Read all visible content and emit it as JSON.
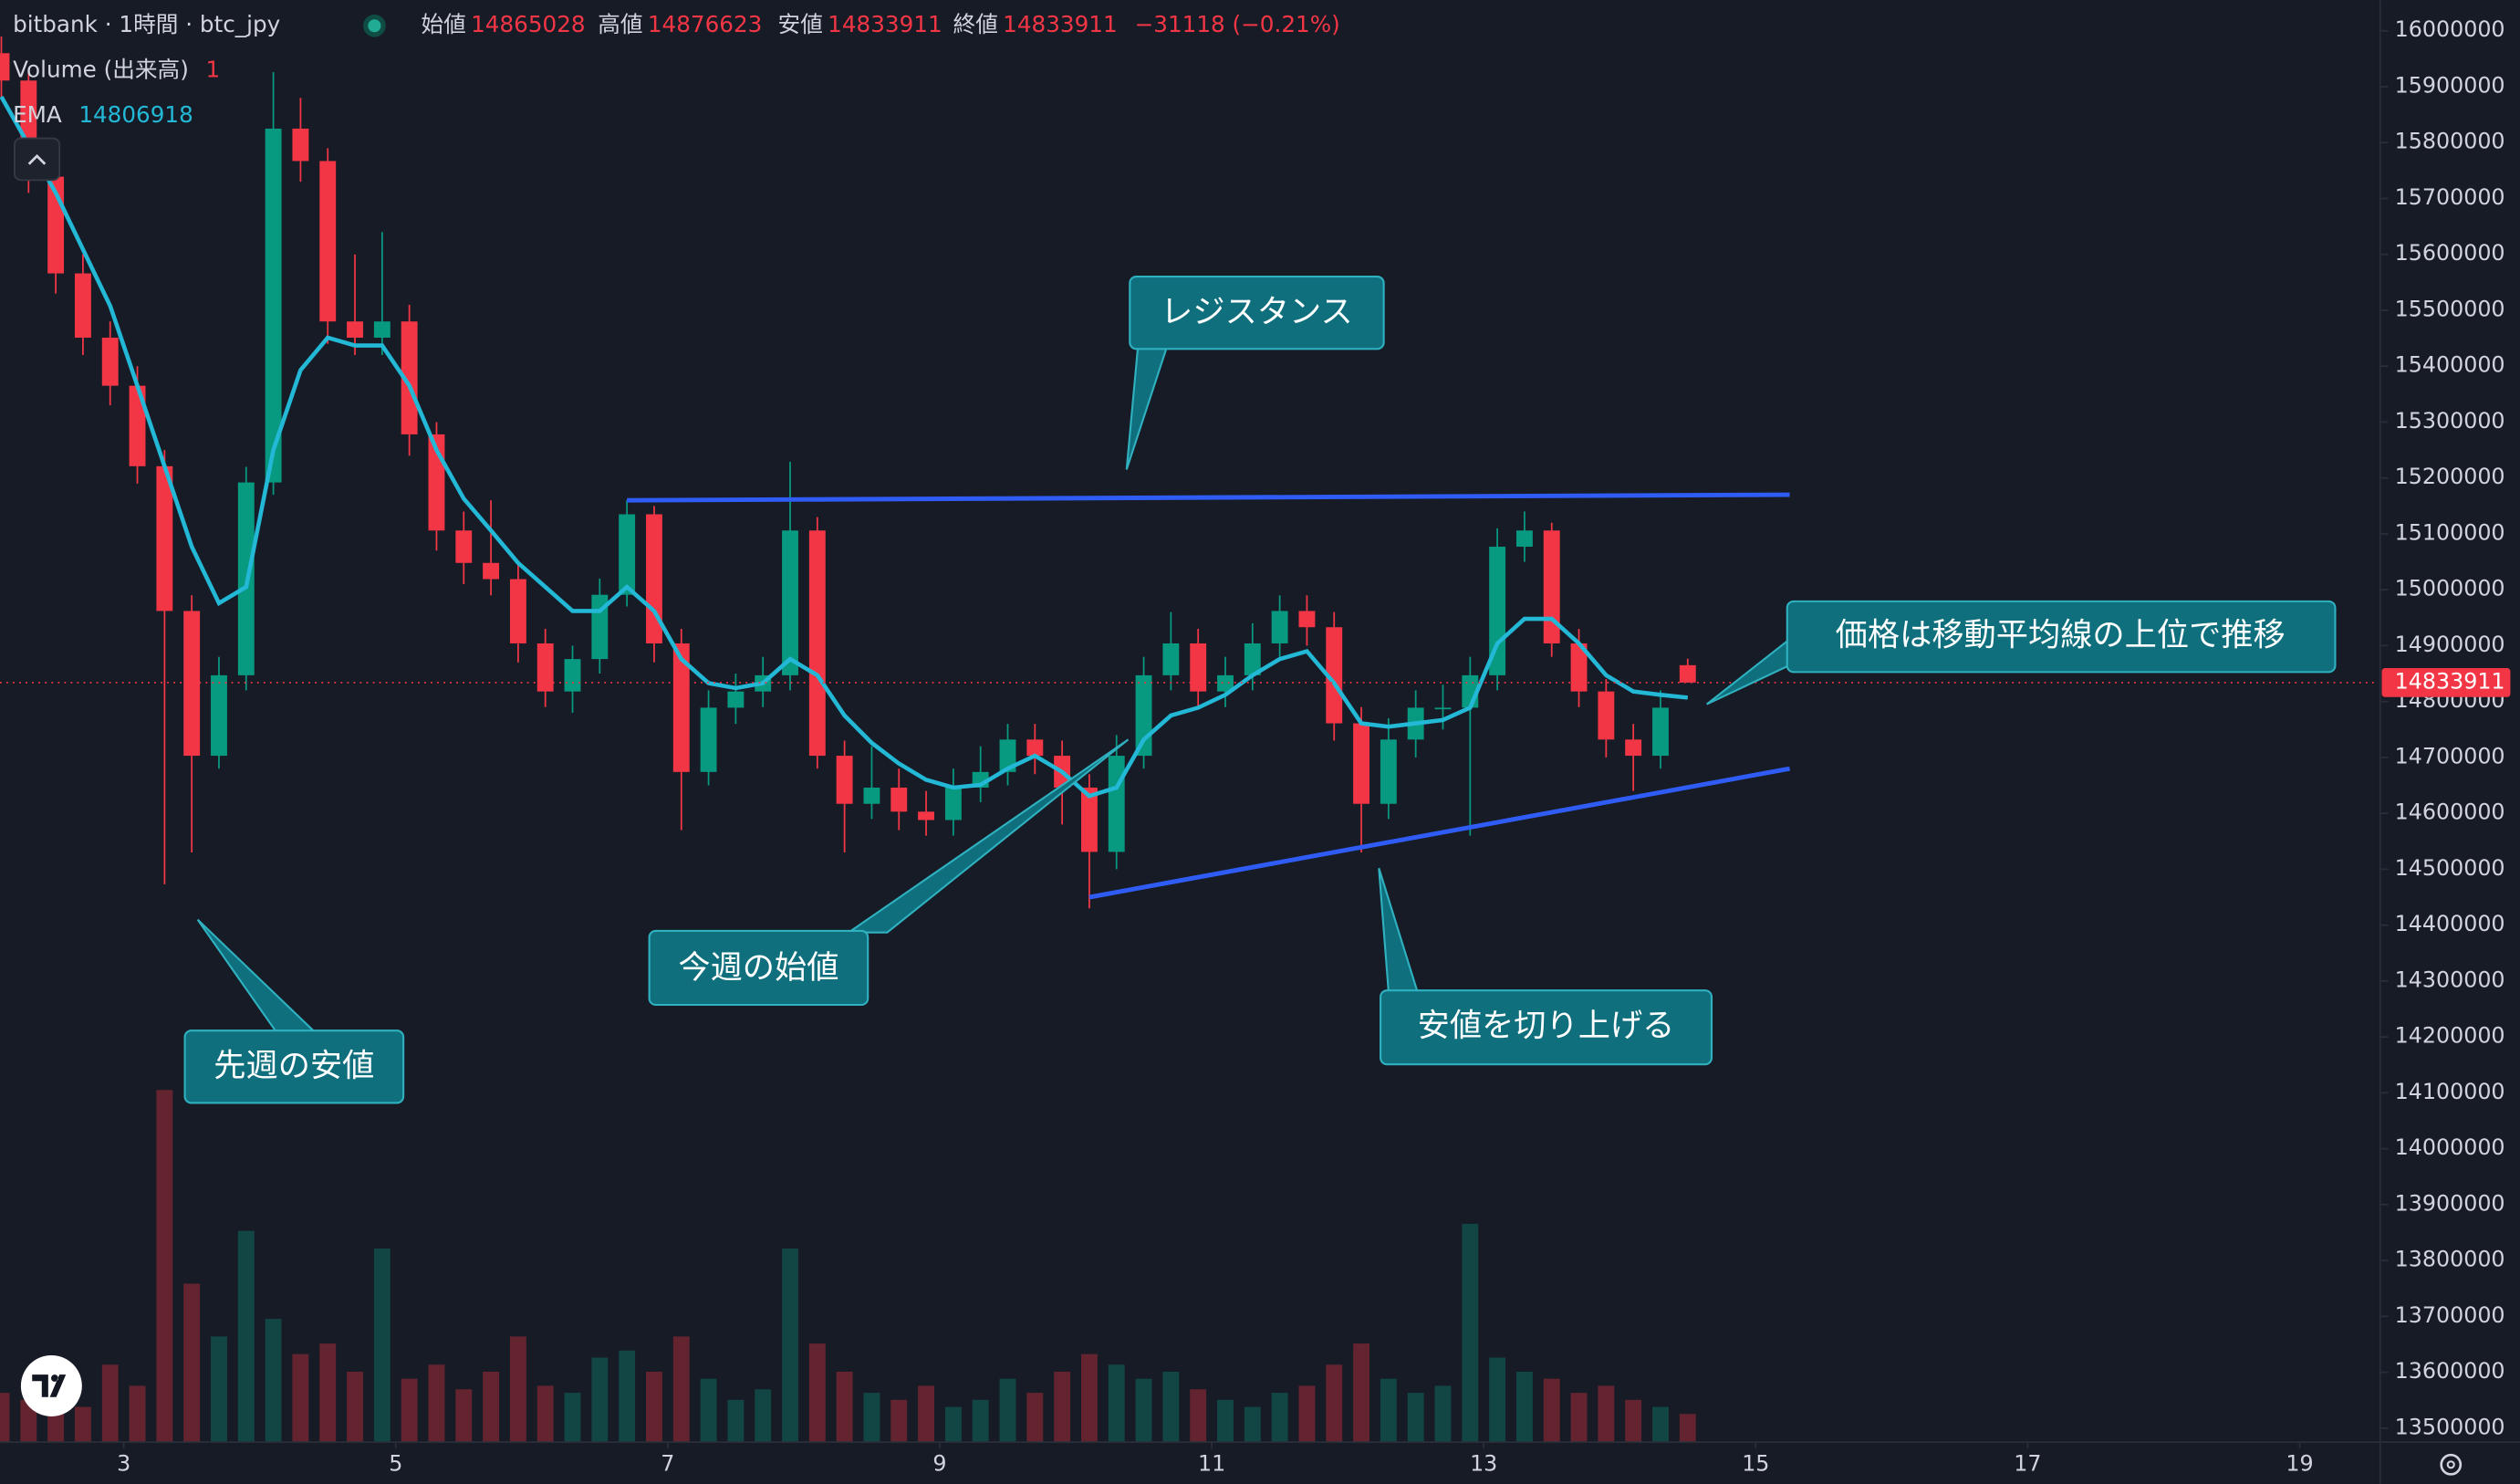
{
  "header": {
    "title": "bitbank · 1時間 · btc_jpy",
    "open_label": "始値",
    "high_label": "高値",
    "low_label": "安値",
    "close_label": "終値",
    "change_label": "−31118 (−0.21%)",
    "volume_label": "Volume (出来高)",
    "volume_length": 1
  },
  "annotations": [
    {
      "text": "レジスタンス"
    },
    {
      "text": "価格は移動平均線の上位で推移"
    },
    {
      "text": "今週の始値"
    },
    {
      "text": "先週の安値"
    },
    {
      "text": "安値を切り上げる"
    }
  ],
  "chart_data": {
    "type": "candlestick",
    "x": [
      2.1,
      2.3,
      2.5,
      2.7,
      2.9,
      3.1,
      3.3,
      3.5,
      3.7,
      3.9,
      4.1,
      4.3,
      4.5,
      4.7,
      4.9,
      5.1,
      5.3,
      5.5,
      5.7,
      5.9,
      6.1,
      6.3,
      6.5,
      6.7,
      6.9,
      7.1,
      7.3,
      7.5,
      7.7,
      7.9,
      8.1,
      8.3,
      8.5,
      8.7,
      8.9,
      9.1,
      9.3,
      9.5,
      9.7,
      9.9,
      10.1,
      10.3,
      10.5,
      10.7,
      10.9,
      11.1,
      11.3,
      11.5,
      11.7,
      11.9,
      12.1,
      12.3,
      12.5,
      12.7,
      12.9,
      13.1,
      13.3,
      13.5,
      13.7,
      13.9,
      14.1,
      14.3,
      14.5
    ],
    "open": [
      15960000,
      15911000,
      15739000,
      15566000,
      15451000,
      15365000,
      15221000,
      14962000,
      14703000,
      14847000,
      15192000,
      15825000,
      15767000,
      15480000,
      15451000,
      15480000,
      15278000,
      15106000,
      15048000,
      15019000,
      14904000,
      14818000,
      14876000,
      14991000,
      15135000,
      14904000,
      14674000,
      14789000,
      14818000,
      14847000,
      15106000,
      14703000,
      14617000,
      14646000,
      14603000,
      14588000,
      14646000,
      14674000,
      14732000,
      14703000,
      14646000,
      14531000,
      14703000,
      14847000,
      14904000,
      14818000,
      14847000,
      14904000,
      14962000,
      14933000,
      14761000,
      14617000,
      14732000,
      14789000,
      14789000,
      14847000,
      15077000,
      15106000,
      14904000,
      14818000,
      14732000,
      14703000,
      14865028
    ],
    "high": [
      15990000,
      15930000,
      15770000,
      15600000,
      15480000,
      15400000,
      15250000,
      14990000,
      14880000,
      15220000,
      15926000,
      15880000,
      15790000,
      15600000,
      15640000,
      15510000,
      15300000,
      15140000,
      15160000,
      15050000,
      14930000,
      14900000,
      15020000,
      15160000,
      15150000,
      14930000,
      14820000,
      14850000,
      14880000,
      15229000,
      15130000,
      14730000,
      14720000,
      14680000,
      14640000,
      14680000,
      14720000,
      14760000,
      14760000,
      14730000,
      14670000,
      14740000,
      14880000,
      14960000,
      14930000,
      14880000,
      14940000,
      14990000,
      14990000,
      14960000,
      14790000,
      14770000,
      14820000,
      14830000,
      14880000,
      15110000,
      15140000,
      15120000,
      14930000,
      14840000,
      14760000,
      14820000,
      14876623
    ],
    "low": [
      15880000,
      15710000,
      15530000,
      15420000,
      15330000,
      15190000,
      14473000,
      14530000,
      14680000,
      14820000,
      15170000,
      15730000,
      15440000,
      15420000,
      15420000,
      15240000,
      15070000,
      15010000,
      14990000,
      14870000,
      14790000,
      14780000,
      14850000,
      14970000,
      14870000,
      14570000,
      14650000,
      14760000,
      14790000,
      14820000,
      14680000,
      14530000,
      14590000,
      14570000,
      14560000,
      14560000,
      14620000,
      14650000,
      14670000,
      14580000,
      14430000,
      14500000,
      14680000,
      14820000,
      14790000,
      14790000,
      14820000,
      14880000,
      14900000,
      14730000,
      14530000,
      14590000,
      14700000,
      14750000,
      14560000,
      14820000,
      15050000,
      14880000,
      14790000,
      14700000,
      14640000,
      14680000,
      14833911
    ],
    "close": [
      15911000,
      15739000,
      15566000,
      15451000,
      15365000,
      15221000,
      14962000,
      14703000,
      14847000,
      15192000,
      15825000,
      15767000,
      15480000,
      15451000,
      15480000,
      15278000,
      15106000,
      15048000,
      15019000,
      14904000,
      14818000,
      14876000,
      14991000,
      15135000,
      14904000,
      14674000,
      14789000,
      14818000,
      14847000,
      15106000,
      14703000,
      14617000,
      14646000,
      14603000,
      14588000,
      14646000,
      14674000,
      14732000,
      14703000,
      14646000,
      14531000,
      14703000,
      14847000,
      14904000,
      14818000,
      14847000,
      14904000,
      14962000,
      14933000,
      14761000,
      14617000,
      14732000,
      14789000,
      14789000,
      14847000,
      15077000,
      15106000,
      14904000,
      14818000,
      14732000,
      14703000,
      14789000,
      14833911
    ],
    "volume": [
      14,
      12,
      18,
      10,
      22,
      16,
      100,
      45,
      30,
      60,
      35,
      25,
      28,
      20,
      55,
      18,
      22,
      15,
      20,
      30,
      16,
      14,
      24,
      26,
      20,
      30,
      18,
      12,
      15,
      55,
      28,
      20,
      14,
      12,
      16,
      10,
      12,
      18,
      14,
      20,
      25,
      22,
      18,
      20,
      15,
      12,
      10,
      14,
      16,
      22,
      28,
      18,
      14,
      16,
      62,
      24,
      20,
      18,
      14,
      16,
      12,
      10,
      8
    ],
    "volume_lim": [
      0,
      105
    ],
    "ema": {
      "name": "EMA",
      "current": 14806918,
      "color": "#22b8d6",
      "values": [
        15882000,
        15796000,
        15710000,
        15609000,
        15508000,
        15365000,
        15221000,
        15077000,
        14976000,
        15005000,
        15250000,
        15393000,
        15451000,
        15437000,
        15437000,
        15365000,
        15250000,
        15163000,
        15106000,
        15048000,
        15005000,
        14962000,
        14962000,
        15005000,
        14962000,
        14876000,
        14833000,
        14824000,
        14833000,
        14876000,
        14847000,
        14775000,
        14726000,
        14689000,
        14660000,
        14646000,
        14651000,
        14680000,
        14703000,
        14674000,
        14631000,
        14646000,
        14732000,
        14775000,
        14789000,
        14812000,
        14847000,
        14876000,
        14890000,
        14833000,
        14761000,
        14755000,
        14761000,
        14767000,
        14789000,
        14904000,
        14948000,
        14948000,
        14904000,
        14847000,
        14818000,
        14812000,
        14807000
      ]
    },
    "up_color": "#089981",
    "down_color": "#f23645",
    "trend_lines": [
      {
        "color": "#2f5cf5",
        "x": [
          6.7,
          15.25
        ],
        "y": [
          15160000,
          15170000
        ]
      },
      {
        "color": "#2f5cf5",
        "x": [
          10.1,
          15.25
        ],
        "y": [
          14450000,
          14680000
        ]
      }
    ],
    "xlim": [
      2.09,
      19.58
    ],
    "xticks": [
      3,
      5,
      7,
      9,
      11,
      13,
      15,
      17,
      19
    ],
    "ylim": [
      13475000,
      16055000
    ],
    "yticks": [
      13500000,
      13600000,
      13700000,
      13800000,
      13900000,
      14000000,
      14100000,
      14200000,
      14300000,
      14400000,
      14500000,
      14600000,
      14700000,
      14800000,
      14900000,
      15000000,
      15100000,
      15200000,
      15300000,
      15400000,
      15500000,
      15600000,
      15700000,
      15800000,
      15900000,
      16000000
    ]
  }
}
